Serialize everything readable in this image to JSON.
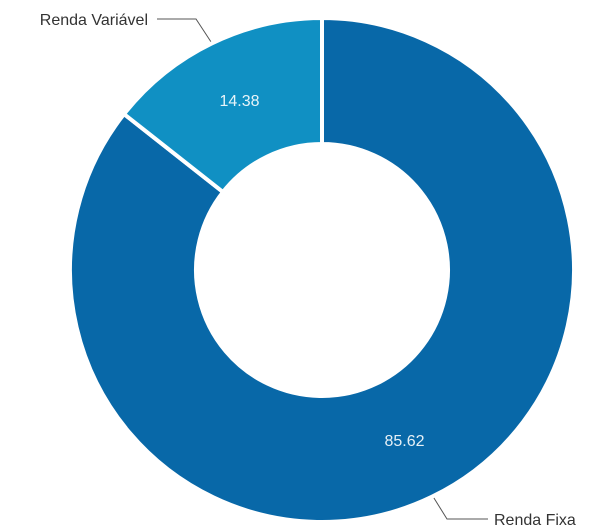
{
  "chart_data": {
    "type": "pie",
    "variant": "donut",
    "categories": [
      "Renda Fixa",
      "Renda Variável"
    ],
    "values": [
      85.62,
      14.38
    ],
    "value_labels": [
      "85.62",
      "14.38"
    ],
    "colors": [
      "#0868a8",
      "#1090c3"
    ],
    "title": "",
    "legend": "none"
  }
}
